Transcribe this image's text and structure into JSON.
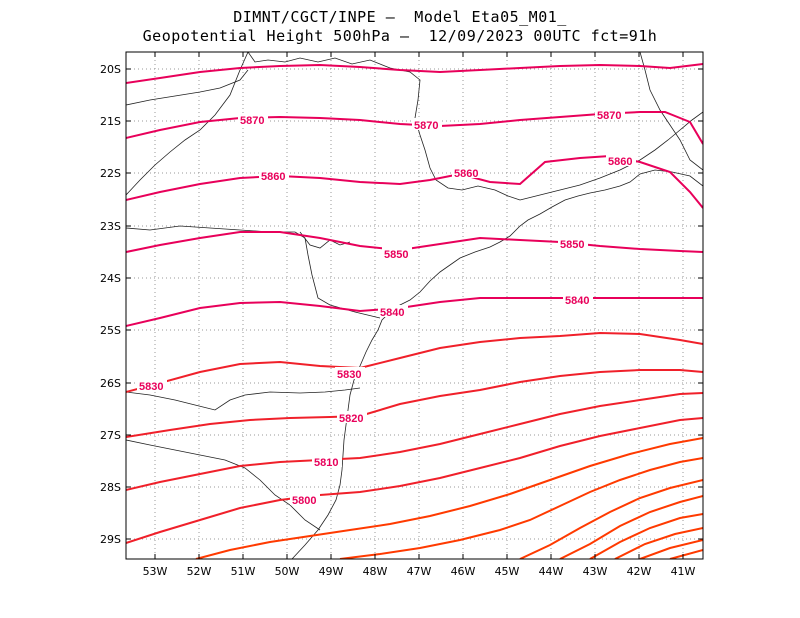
{
  "header": {
    "line1": "DIMNT/CGCT/INPE –  Model Eta05_M01_",
    "line2": "Geopotential Height 500hPa –  12/09/2023 00UTC fct=91h"
  },
  "axes": {
    "lat_labels": [
      "20S",
      "21S",
      "22S",
      "23S",
      "24S",
      "25S",
      "26S",
      "27S",
      "28S",
      "29S"
    ],
    "lon_labels": [
      "53W",
      "52W",
      "51W",
      "50W",
      "49W",
      "48W",
      "47W",
      "46W",
      "45W",
      "44W",
      "43W",
      "42W",
      "41W"
    ]
  },
  "contours": {
    "units": "gpm",
    "labels": [
      "5870",
      "5870",
      "5870",
      "5860",
      "5860",
      "5860",
      "5850",
      "5850",
      "5840",
      "5840",
      "5830",
      "5830",
      "5820",
      "5810",
      "5800"
    ],
    "colors": {
      "high": "#e8005a",
      "mid": "#f0202a",
      "low": "#ff3a00",
      "label": "#e8005a",
      "coast": "#222222",
      "grid": "#9a9a9a"
    }
  }
}
